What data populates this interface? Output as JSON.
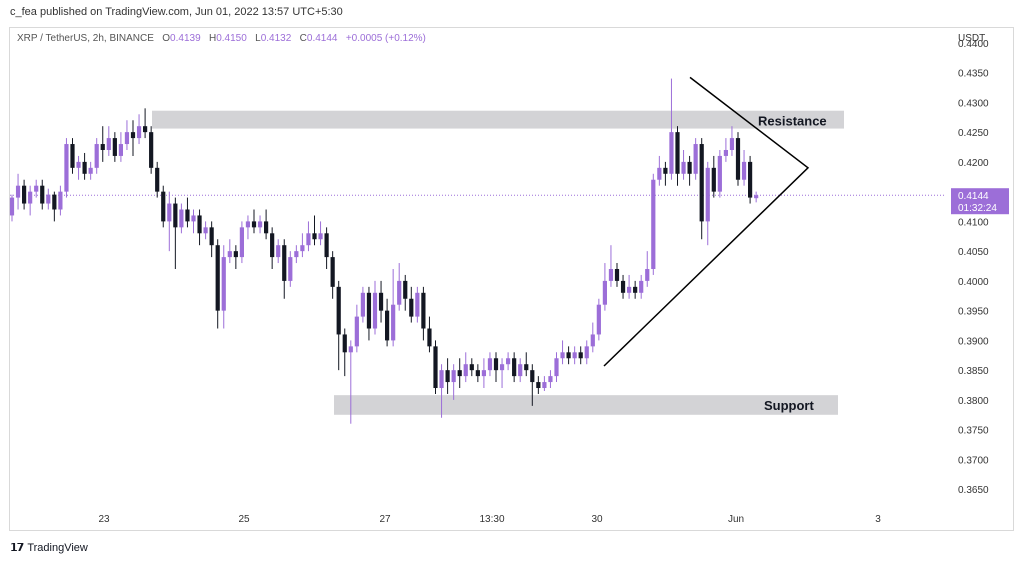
{
  "header": {
    "publisher": "c_fea published on TradingView.com, Jun 01, 2022 13:57 UTC+5:30"
  },
  "legend": {
    "symbol": "XRP / TetherUS, 2h, BINANCE",
    "o_label": "O",
    "o": "0.4139",
    "h_label": "H",
    "h": "0.4150",
    "l_label": "L",
    "l": "0.4132",
    "c_label": "C",
    "c": "0.4144",
    "change": "+0.0005 (+0.12%)"
  },
  "axis_unit": "USDT",
  "footer": {
    "brand": "TradingView"
  },
  "colors": {
    "up": "#9c6ed8",
    "down": "#131722",
    "zone": "#d3d3d6",
    "price_tag": "#9c6ed8"
  },
  "chart_data": {
    "type": "candlestick",
    "title": "",
    "xlabel": "",
    "ylabel": "USDT",
    "ylim": [
      0.3615,
      0.4425
    ],
    "y_ticks": [
      "0.4400",
      "0.4350",
      "0.4300",
      "0.4250",
      "0.4200",
      "0.4150",
      "0.4100",
      "0.4050",
      "0.4000",
      "0.3950",
      "0.3900",
      "0.3850",
      "0.3800",
      "0.3750",
      "0.3700",
      "0.3650"
    ],
    "x_ticks": [
      "23",
      "25",
      "27",
      "13:30",
      "30",
      "Jun",
      "3"
    ],
    "last_price": "0.4144",
    "countdown": "01:32:24",
    "annotations": {
      "resistance": {
        "label": "Resistance",
        "y_top": 0.4286,
        "y_bottom": 0.4256
      },
      "support": {
        "label": "Support",
        "y_top": 0.3808,
        "y_bottom": 0.3775
      },
      "triangle": {
        "apex_price": 0.419,
        "base_low_price": 0.3857,
        "base_high_price": 0.4342
      }
    },
    "candles": [
      [
        0.411,
        0.414,
        0.41,
        0.4145
      ],
      [
        0.414,
        0.416,
        0.412,
        0.418
      ],
      [
        0.416,
        0.413,
        0.412,
        0.417
      ],
      [
        0.413,
        0.415,
        0.411,
        0.416
      ],
      [
        0.415,
        0.416,
        0.414,
        0.417
      ],
      [
        0.416,
        0.413,
        0.412,
        0.417
      ],
      [
        0.413,
        0.4145,
        0.412,
        0.4155
      ],
      [
        0.4145,
        0.412,
        0.41,
        0.415
      ],
      [
        0.412,
        0.415,
        0.411,
        0.416
      ],
      [
        0.415,
        0.423,
        0.414,
        0.424
      ],
      [
        0.423,
        0.419,
        0.418,
        0.424
      ],
      [
        0.419,
        0.42,
        0.417,
        0.421
      ],
      [
        0.42,
        0.418,
        0.417,
        0.4215
      ],
      [
        0.418,
        0.419,
        0.417,
        0.42
      ],
      [
        0.419,
        0.423,
        0.418,
        0.424
      ],
      [
        0.423,
        0.422,
        0.42,
        0.426
      ],
      [
        0.422,
        0.424,
        0.421,
        0.426
      ],
      [
        0.424,
        0.421,
        0.42,
        0.425
      ],
      [
        0.421,
        0.423,
        0.42,
        0.425
      ],
      [
        0.423,
        0.425,
        0.422,
        0.427
      ],
      [
        0.425,
        0.424,
        0.421,
        0.427
      ],
      [
        0.424,
        0.426,
        0.423,
        0.428
      ],
      [
        0.426,
        0.425,
        0.424,
        0.429
      ],
      [
        0.425,
        0.419,
        0.418,
        0.426
      ],
      [
        0.419,
        0.415,
        0.414,
        0.42
      ],
      [
        0.415,
        0.41,
        0.409,
        0.416
      ],
      [
        0.41,
        0.413,
        0.405,
        0.415
      ],
      [
        0.413,
        0.409,
        0.402,
        0.414
      ],
      [
        0.409,
        0.412,
        0.408,
        0.413
      ],
      [
        0.412,
        0.41,
        0.409,
        0.414
      ],
      [
        0.41,
        0.411,
        0.408,
        0.412
      ],
      [
        0.411,
        0.408,
        0.406,
        0.412
      ],
      [
        0.408,
        0.409,
        0.407,
        0.41
      ],
      [
        0.409,
        0.406,
        0.404,
        0.41
      ],
      [
        0.406,
        0.395,
        0.392,
        0.407
      ],
      [
        0.395,
        0.404,
        0.392,
        0.406
      ],
      [
        0.404,
        0.405,
        0.403,
        0.407
      ],
      [
        0.405,
        0.404,
        0.402,
        0.406
      ],
      [
        0.404,
        0.409,
        0.403,
        0.41
      ],
      [
        0.409,
        0.41,
        0.407,
        0.411
      ],
      [
        0.41,
        0.409,
        0.408,
        0.412
      ],
      [
        0.409,
        0.41,
        0.408,
        0.411
      ],
      [
        0.41,
        0.408,
        0.407,
        0.412
      ],
      [
        0.408,
        0.404,
        0.402,
        0.409
      ],
      [
        0.404,
        0.406,
        0.403,
        0.407
      ],
      [
        0.406,
        0.4,
        0.397,
        0.407
      ],
      [
        0.4,
        0.404,
        0.399,
        0.405
      ],
      [
        0.404,
        0.405,
        0.403,
        0.406
      ],
      [
        0.405,
        0.406,
        0.404,
        0.408
      ],
      [
        0.406,
        0.408,
        0.405,
        0.41
      ],
      [
        0.408,
        0.407,
        0.406,
        0.411
      ],
      [
        0.407,
        0.408,
        0.406,
        0.41
      ],
      [
        0.408,
        0.404,
        0.402,
        0.409
      ],
      [
        0.404,
        0.399,
        0.397,
        0.405
      ],
      [
        0.399,
        0.391,
        0.385,
        0.4
      ],
      [
        0.391,
        0.388,
        0.384,
        0.392
      ],
      [
        0.388,
        0.389,
        0.376,
        0.39
      ],
      [
        0.389,
        0.394,
        0.388,
        0.396
      ],
      [
        0.394,
        0.398,
        0.393,
        0.399
      ],
      [
        0.398,
        0.392,
        0.39,
        0.399
      ],
      [
        0.392,
        0.398,
        0.391,
        0.4
      ],
      [
        0.398,
        0.395,
        0.393,
        0.4
      ],
      [
        0.395,
        0.39,
        0.389,
        0.397
      ],
      [
        0.39,
        0.396,
        0.389,
        0.402
      ],
      [
        0.396,
        0.4,
        0.395,
        0.403
      ],
      [
        0.4,
        0.397,
        0.395,
        0.401
      ],
      [
        0.397,
        0.394,
        0.393,
        0.399
      ],
      [
        0.394,
        0.398,
        0.393,
        0.399
      ],
      [
        0.398,
        0.392,
        0.39,
        0.399
      ],
      [
        0.392,
        0.389,
        0.388,
        0.394
      ],
      [
        0.389,
        0.382,
        0.381,
        0.39
      ],
      [
        0.382,
        0.385,
        0.377,
        0.386
      ],
      [
        0.385,
        0.383,
        0.381,
        0.387
      ],
      [
        0.383,
        0.385,
        0.38,
        0.386
      ],
      [
        0.385,
        0.384,
        0.382,
        0.387
      ],
      [
        0.384,
        0.386,
        0.383,
        0.388
      ],
      [
        0.386,
        0.385,
        0.384,
        0.387
      ],
      [
        0.385,
        0.384,
        0.383,
        0.386
      ],
      [
        0.384,
        0.385,
        0.382,
        0.387
      ],
      [
        0.385,
        0.387,
        0.384,
        0.388
      ],
      [
        0.387,
        0.385,
        0.383,
        0.388
      ],
      [
        0.385,
        0.386,
        0.382,
        0.387
      ],
      [
        0.386,
        0.387,
        0.385,
        0.388
      ],
      [
        0.387,
        0.384,
        0.383,
        0.388
      ],
      [
        0.384,
        0.386,
        0.383,
        0.387
      ],
      [
        0.386,
        0.385,
        0.384,
        0.388
      ],
      [
        0.385,
        0.383,
        0.379,
        0.386
      ],
      [
        0.383,
        0.382,
        0.381,
        0.384
      ],
      [
        0.382,
        0.383,
        0.3815,
        0.384
      ],
      [
        0.383,
        0.384,
        0.382,
        0.385
      ],
      [
        0.384,
        0.387,
        0.383,
        0.388
      ],
      [
        0.387,
        0.388,
        0.386,
        0.39
      ],
      [
        0.388,
        0.387,
        0.386,
        0.389
      ],
      [
        0.387,
        0.388,
        0.386,
        0.389
      ],
      [
        0.388,
        0.387,
        0.386,
        0.389
      ],
      [
        0.387,
        0.389,
        0.386,
        0.39
      ],
      [
        0.389,
        0.391,
        0.388,
        0.393
      ],
      [
        0.391,
        0.396,
        0.39,
        0.397
      ],
      [
        0.396,
        0.4,
        0.395,
        0.403
      ],
      [
        0.4,
        0.402,
        0.399,
        0.406
      ],
      [
        0.402,
        0.4,
        0.399,
        0.403
      ],
      [
        0.4,
        0.398,
        0.397,
        0.401
      ],
      [
        0.398,
        0.399,
        0.397,
        0.401
      ],
      [
        0.399,
        0.398,
        0.397,
        0.4
      ],
      [
        0.398,
        0.4,
        0.397,
        0.401
      ],
      [
        0.4,
        0.402,
        0.399,
        0.405
      ],
      [
        0.402,
        0.417,
        0.401,
        0.418
      ],
      [
        0.417,
        0.419,
        0.416,
        0.421
      ],
      [
        0.419,
        0.418,
        0.416,
        0.42
      ],
      [
        0.418,
        0.425,
        0.417,
        0.434
      ],
      [
        0.425,
        0.418,
        0.416,
        0.426
      ],
      [
        0.418,
        0.42,
        0.417,
        0.422
      ],
      [
        0.42,
        0.418,
        0.416,
        0.421
      ],
      [
        0.418,
        0.423,
        0.417,
        0.424
      ],
      [
        0.423,
        0.41,
        0.407,
        0.424
      ],
      [
        0.41,
        0.419,
        0.406,
        0.42
      ],
      [
        0.419,
        0.415,
        0.414,
        0.421
      ],
      [
        0.415,
        0.421,
        0.414,
        0.422
      ],
      [
        0.421,
        0.422,
        0.42,
        0.424
      ],
      [
        0.422,
        0.424,
        0.421,
        0.426
      ],
      [
        0.424,
        0.417,
        0.416,
        0.425
      ],
      [
        0.417,
        0.42,
        0.416,
        0.422
      ],
      [
        0.42,
        0.414,
        0.413,
        0.421
      ],
      [
        0.4139,
        0.4144,
        0.4132,
        0.415
      ]
    ]
  }
}
